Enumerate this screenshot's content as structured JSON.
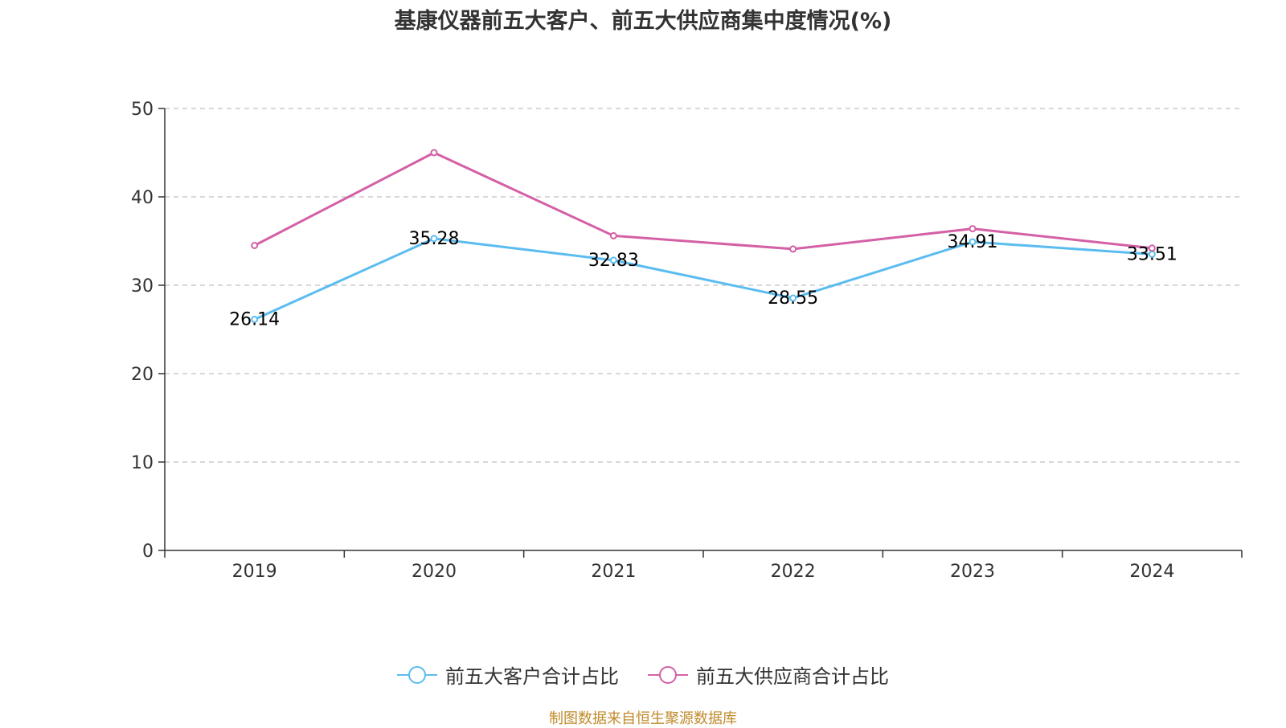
{
  "chart_data": {
    "type": "line",
    "title": "基康仪器前五大客户、前五大供应商集中度情况(%)",
    "xlabel": "",
    "ylabel": "",
    "categories": [
      "2019",
      "2020",
      "2021",
      "2022",
      "2023",
      "2024"
    ],
    "ylim": [
      0,
      50
    ],
    "yticks": [
      "0",
      "10",
      "20",
      "30",
      "40",
      "50"
    ],
    "grid": true,
    "legend_position": "bottom",
    "series": [
      {
        "name": "前五大客户合计占比",
        "color": "#5bbcf0",
        "values": [
          26.14,
          35.28,
          32.83,
          28.55,
          34.91,
          33.51
        ],
        "labels": [
          "26.14",
          "35.28",
          "32.83",
          "28.55",
          "34.91",
          "33.51"
        ]
      },
      {
        "name": "前五大供应商合计占比",
        "color": "#d460a6",
        "values": [
          34.5,
          45.0,
          35.6,
          34.1,
          36.4,
          34.2
        ]
      }
    ]
  },
  "source": "制图数据来自恒生聚源数据库"
}
